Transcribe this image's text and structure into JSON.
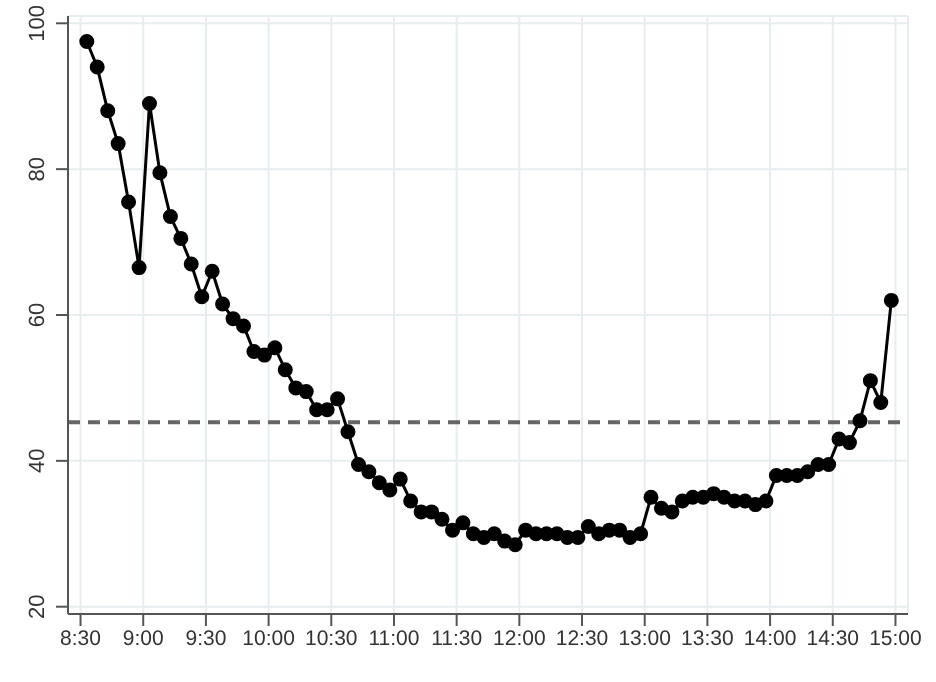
{
  "chart_data": {
    "type": "line",
    "x": [
      8.55,
      8.633,
      8.717,
      8.8,
      8.883,
      8.967,
      9.05,
      9.133,
      9.217,
      9.3,
      9.383,
      9.467,
      9.55,
      9.633,
      9.717,
      9.8,
      9.883,
      9.967,
      10.05,
      10.133,
      10.217,
      10.3,
      10.383,
      10.467,
      10.55,
      10.633,
      10.717,
      10.8,
      10.883,
      10.967,
      11.05,
      11.133,
      11.217,
      11.3,
      11.383,
      11.467,
      11.55,
      11.633,
      11.717,
      11.8,
      11.883,
      11.967,
      12.05,
      12.133,
      12.217,
      12.3,
      12.383,
      12.467,
      12.55,
      12.633,
      12.717,
      12.8,
      12.883,
      12.967,
      13.05,
      13.133,
      13.217,
      13.3,
      13.383,
      13.467,
      13.55,
      13.633,
      13.717,
      13.8,
      13.883,
      13.967,
      14.05,
      14.133,
      14.217,
      14.3,
      14.383,
      14.467,
      14.55,
      14.633,
      14.717,
      14.8,
      14.883,
      14.967
    ],
    "series": [
      {
        "color": "#000000",
        "values": [
          97.5,
          94,
          88,
          83.5,
          75.5,
          66.5,
          89,
          79.5,
          73.5,
          70.5,
          67,
          62.5,
          66,
          61.5,
          59.5,
          58.5,
          55,
          54.5,
          55.5,
          52.5,
          50,
          49.5,
          47,
          47,
          48.5,
          44,
          39.5,
          38.5,
          37,
          36,
          37.5,
          34.5,
          33,
          33,
          32,
          30.5,
          31.5,
          30,
          29.5,
          30,
          29,
          28.5,
          30.5,
          30,
          30,
          30,
          29.5,
          29.5,
          31,
          30,
          30.5,
          30.5,
          29.5,
          30,
          35,
          33.5,
          33,
          34.5,
          35,
          35,
          35.5,
          35,
          34.5,
          34.5,
          34,
          34.5,
          38,
          38,
          38,
          38.5,
          39.5,
          39.5,
          43,
          42.5,
          45.5,
          51,
          48,
          62
        ]
      }
    ],
    "xlim": [
      8.4,
      15.1
    ],
    "xticks": [
      {
        "value": 8.5,
        "label": "8:30"
      },
      {
        "value": 9,
        "label": "9:00"
      },
      {
        "value": 9.5,
        "label": "9:30"
      },
      {
        "value": 10,
        "label": "10:00"
      },
      {
        "value": 10.5,
        "label": "10:30"
      },
      {
        "value": 11,
        "label": "11:00"
      },
      {
        "value": 11.5,
        "label": "11:30"
      },
      {
        "value": 12,
        "label": "12:00"
      },
      {
        "value": 12.5,
        "label": "12:30"
      },
      {
        "value": 13,
        "label": "13:00"
      },
      {
        "value": 13.5,
        "label": "13:30"
      },
      {
        "value": 14,
        "label": "14:00"
      },
      {
        "value": 14.5,
        "label": "14:30"
      },
      {
        "value": 15,
        "label": "15:00"
      }
    ],
    "ylim": [
      19,
      101
    ],
    "yticks": [
      20,
      40,
      60,
      80,
      100
    ],
    "grid": true,
    "marker": "circle",
    "line_style": "solid",
    "ref_lines": [
      {
        "axis": "y",
        "value": 45.3,
        "color": "#666666",
        "line_style": "dashed"
      }
    ]
  }
}
